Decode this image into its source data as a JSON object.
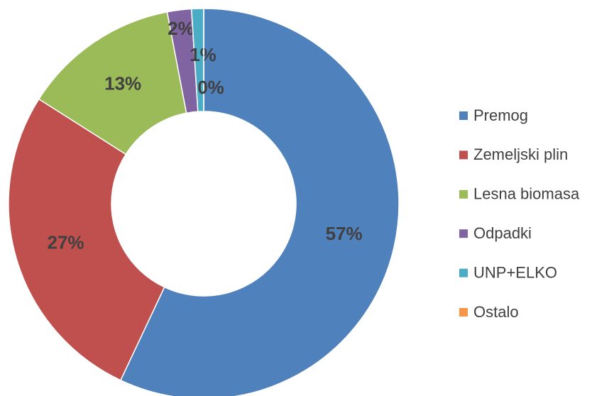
{
  "chart_data": {
    "type": "donut",
    "categories": [
      "Premog",
      "Zemeljski plin",
      "Lesna biomasa",
      "Odpadki",
      "UNP+ELKO",
      "Ostalo"
    ],
    "values": [
      57,
      27,
      13,
      2,
      1,
      0
    ],
    "value_labels": [
      "57%",
      "27%",
      "13%",
      "2%",
      "1%",
      "0%"
    ],
    "colors": [
      "#4f81bd",
      "#c0504d",
      "#9bbb59",
      "#8064a2",
      "#4bacc6",
      "#f79646"
    ],
    "legend": "right"
  }
}
